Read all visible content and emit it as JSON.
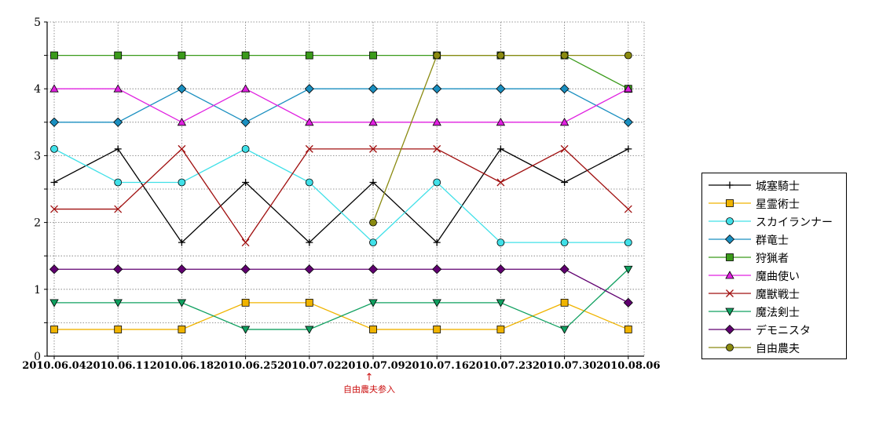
{
  "chart_data": {
    "type": "line",
    "categories": [
      "2010.06.04",
      "2010.06.11",
      "2010.06.18",
      "2010.06.25",
      "2010.07.02",
      "2010.07.09",
      "2010.07.16",
      "2010.07.23",
      "2010.07.30",
      "2010.08.06"
    ],
    "ylim": [
      0,
      5
    ],
    "yticks": [
      "0",
      "1",
      "2",
      "3",
      "4",
      "5"
    ],
    "grid": true,
    "legend_position": "right",
    "series": [
      {
        "name": "城塞騎士",
        "color": "#000000",
        "marker": "plus",
        "values": [
          2.6,
          3.1,
          1.7,
          2.6,
          1.7,
          2.6,
          1.7,
          3.1,
          2.6,
          3.1
        ]
      },
      {
        "name": "星霊術士",
        "color": "#f0b400",
        "marker": "square",
        "values": [
          0.4,
          0.4,
          0.4,
          0.8,
          0.8,
          0.4,
          0.4,
          0.4,
          0.8,
          0.4
        ]
      },
      {
        "name": "スカイランナー",
        "color": "#40e0e8",
        "marker": "circle",
        "values": [
          3.1,
          2.6,
          2.6,
          3.1,
          2.6,
          1.7,
          2.6,
          1.7,
          1.7,
          1.7
        ]
      },
      {
        "name": "群竜士",
        "color": "#1a8fc0",
        "marker": "diamond",
        "values": [
          3.5,
          3.5,
          4,
          3.5,
          4,
          4,
          4,
          4,
          4,
          3.5
        ]
      },
      {
        "name": "狩猟者",
        "color": "#3a9a1a",
        "marker": "square",
        "values": [
          4.5,
          4.5,
          4.5,
          4.5,
          4.5,
          4.5,
          4.5,
          4.5,
          4.5,
          4
        ]
      },
      {
        "name": "魔曲使い",
        "color": "#e020e0",
        "marker": "triangle-up",
        "values": [
          4,
          4,
          3.5,
          4,
          3.5,
          3.5,
          3.5,
          3.5,
          3.5,
          4
        ]
      },
      {
        "name": "魔獣戦士",
        "color": "#a01010",
        "marker": "cross",
        "values": [
          2.2,
          2.2,
          3.1,
          1.7,
          3.1,
          3.1,
          3.1,
          2.6,
          3.1,
          2.2
        ]
      },
      {
        "name": "魔法剣士",
        "color": "#10a060",
        "marker": "triangle-down",
        "values": [
          0.8,
          0.8,
          0.8,
          0.4,
          0.4,
          0.8,
          0.8,
          0.8,
          0.4,
          1.3
        ]
      },
      {
        "name": "デモニスタ",
        "color": "#600070",
        "marker": "diamond",
        "values": [
          1.3,
          1.3,
          1.3,
          1.3,
          1.3,
          1.3,
          1.3,
          1.3,
          1.3,
          0.8
        ]
      },
      {
        "name": "自由農夫",
        "color": "#8a8a10",
        "marker": "circle",
        "values": [
          null,
          null,
          null,
          null,
          null,
          2,
          4.5,
          4.5,
          4.5,
          4.5
        ]
      }
    ],
    "annotation": {
      "text": "自由農夫参入",
      "arrow": "↑",
      "at_category": "2010.07.09"
    }
  }
}
